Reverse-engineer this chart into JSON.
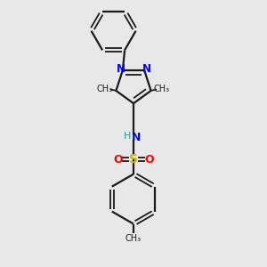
{
  "bg_color": "#e8e8e8",
  "bond_color": "#1a1a1a",
  "N_color": "#0000ff",
  "S_color": "#c8b400",
  "O_color": "#ff0000",
  "NH_color": "#00aaaa",
  "figsize": [
    3.0,
    3.0
  ],
  "dpi": 100,
  "xlim": [
    0,
    10
  ],
  "ylim": [
    0,
    10
  ]
}
